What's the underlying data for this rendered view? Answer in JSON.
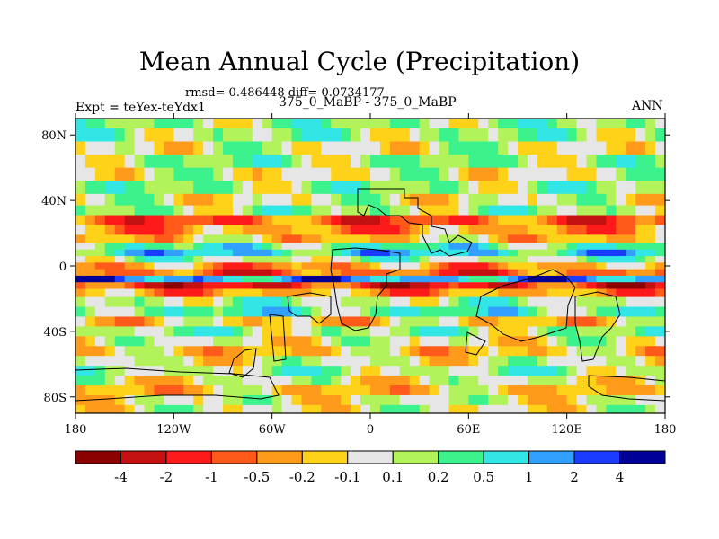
{
  "title": "Mean Annual Cycle (Precipitation)",
  "stats_line": "rmsd= 0.486448 diff= 0.0734177",
  "left_label": "Expt = teYex-teYdx1",
  "center_label": "375_0_MaBP - 375_0_MaBP",
  "right_label": "ANN",
  "chart_data": {
    "type": "heatmap",
    "title": "Mean Annual Cycle (Precipitation)",
    "variable": "Precipitation difference",
    "xlim": [
      -180,
      180
    ],
    "ylim": [
      -90,
      90
    ],
    "x_ticks": [
      {
        "value": -180,
        "label": "180"
      },
      {
        "value": -120,
        "label": "120W"
      },
      {
        "value": -60,
        "label": "60W"
      },
      {
        "value": 0,
        "label": "0"
      },
      {
        "value": 60,
        "label": "60E"
      },
      {
        "value": 120,
        "label": "120E"
      },
      {
        "value": 180,
        "label": "180"
      }
    ],
    "y_ticks": [
      {
        "value": 80,
        "label": "80N"
      },
      {
        "value": 40,
        "label": "40N"
      },
      {
        "value": 0,
        "label": "0"
      },
      {
        "value": -40,
        "label": "40S"
      },
      {
        "value": -80,
        "label": "80S"
      }
    ],
    "colorbar": {
      "colors": [
        "#8b0000",
        "#c41010",
        "#ff1a1a",
        "#ff5a1a",
        "#ff9a1a",
        "#ffd21a",
        "#e6e6e6",
        "#b2f25a",
        "#3cf28c",
        "#32e6e6",
        "#32a0ff",
        "#1a3cff",
        "#000096"
      ],
      "tick_labels": [
        "-4",
        "-2",
        "-1",
        "-0.5",
        "-0.2",
        "-0.1",
        "0.1",
        "0.2",
        "0.5",
        "1",
        "2",
        "4"
      ]
    },
    "band_profile": [
      {
        "lat": 88,
        "level": 1
      },
      {
        "lat": 80,
        "level": 1
      },
      {
        "lat": 72,
        "level": 0
      },
      {
        "lat": 64,
        "level": 1
      },
      {
        "lat": 56,
        "level": 0
      },
      {
        "lat": 48,
        "level": 1
      },
      {
        "lat": 40,
        "level": 0
      },
      {
        "lat": 34,
        "level": 1
      },
      {
        "lat": 28,
        "level": -3
      },
      {
        "lat": 22,
        "level": -2
      },
      {
        "lat": 16,
        "level": -1
      },
      {
        "lat": 12,
        "level": 2
      },
      {
        "lat": 8,
        "level": 3
      },
      {
        "lat": 4,
        "level": 1
      },
      {
        "lat": 0,
        "level": -2
      },
      {
        "lat": -4,
        "level": -3
      },
      {
        "lat": -8,
        "level": 4
      },
      {
        "lat": -12,
        "level": -4
      },
      {
        "lat": -16,
        "level": -2
      },
      {
        "lat": -22,
        "level": 1
      },
      {
        "lat": -28,
        "level": 2
      },
      {
        "lat": -34,
        "level": -1
      },
      {
        "lat": -40,
        "level": 1
      },
      {
        "lat": -46,
        "level": 0
      },
      {
        "lat": -52,
        "level": -1
      },
      {
        "lat": -58,
        "level": 0
      },
      {
        "lat": -64,
        "level": 1
      },
      {
        "lat": -70,
        "level": 0
      },
      {
        "lat": -76,
        "level": -1
      },
      {
        "lat": -82,
        "level": 0
      },
      {
        "lat": -88,
        "level": 0
      }
    ]
  }
}
